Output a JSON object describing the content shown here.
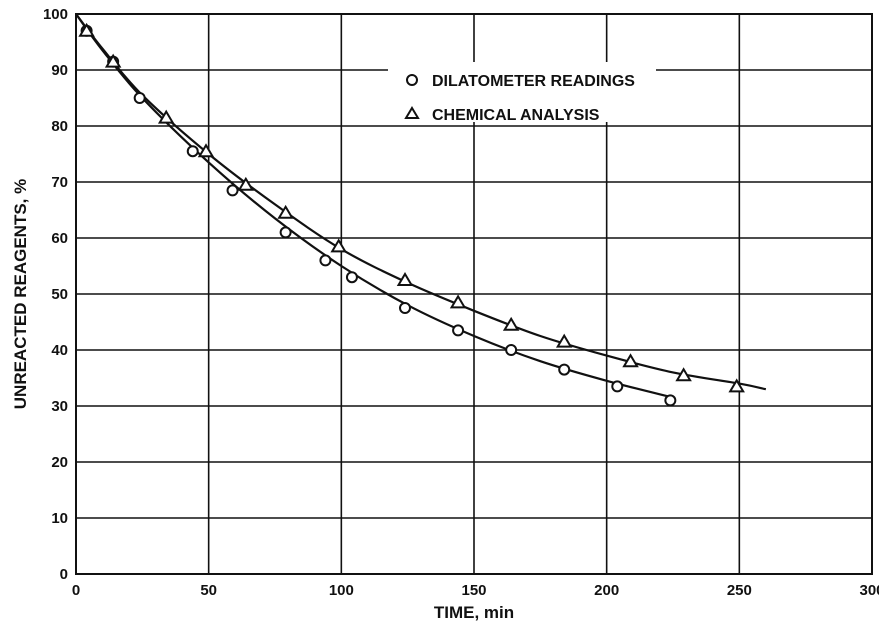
{
  "chart_data": {
    "type": "scatter",
    "xlabel": "TIME, min",
    "ylabel": "UNREACTED REAGENTS, %",
    "xlim": [
      0,
      300
    ],
    "ylim": [
      0,
      100
    ],
    "xticks": [
      "0",
      "50",
      "100",
      "150",
      "200",
      "250",
      "300"
    ],
    "yticks": [
      "0",
      "10",
      "20",
      "30",
      "40",
      "50",
      "60",
      "70",
      "80",
      "90",
      "100"
    ],
    "grid": true,
    "legend_position": "top-right",
    "series": [
      {
        "name": "DILATOMETER READINGS",
        "marker": "circle",
        "points": [
          [
            4,
            97
          ],
          [
            14,
            91.5
          ],
          [
            24,
            85
          ],
          [
            44,
            75.5
          ],
          [
            59,
            68.5
          ],
          [
            79,
            61
          ],
          [
            94,
            56
          ],
          [
            104,
            53
          ],
          [
            124,
            47.5
          ],
          [
            144,
            43.5
          ],
          [
            164,
            40
          ],
          [
            184,
            36.5
          ],
          [
            204,
            33.5
          ],
          [
            224,
            31
          ]
        ],
        "fit_curve": [
          [
            0,
            100
          ],
          [
            10,
            93.5
          ],
          [
            25,
            85
          ],
          [
            50,
            73.5
          ],
          [
            75,
            63.5
          ],
          [
            100,
            55
          ],
          [
            125,
            48
          ],
          [
            150,
            42.5
          ],
          [
            175,
            38
          ],
          [
            200,
            34.5
          ],
          [
            225,
            31.5
          ]
        ]
      },
      {
        "name": "CHEMICAL ANALYSIS",
        "marker": "triangle",
        "points": [
          [
            4,
            97
          ],
          [
            14,
            91.5
          ],
          [
            34,
            81.5
          ],
          [
            49,
            75.5
          ],
          [
            64,
            69.5
          ],
          [
            79,
            64.5
          ],
          [
            99,
            58.5
          ],
          [
            124,
            52.5
          ],
          [
            144,
            48.5
          ],
          [
            164,
            44.5
          ],
          [
            184,
            41.5
          ],
          [
            209,
            38
          ],
          [
            229,
            35.5
          ],
          [
            249,
            33.5
          ]
        ],
        "fit_curve": [
          [
            0,
            100
          ],
          [
            10,
            93.8
          ],
          [
            25,
            85.5
          ],
          [
            50,
            75
          ],
          [
            75,
            66
          ],
          [
            100,
            58
          ],
          [
            125,
            52
          ],
          [
            150,
            47
          ],
          [
            175,
            42.5
          ],
          [
            200,
            39
          ],
          [
            225,
            36
          ],
          [
            250,
            34
          ],
          [
            260,
            33
          ]
        ]
      }
    ]
  }
}
